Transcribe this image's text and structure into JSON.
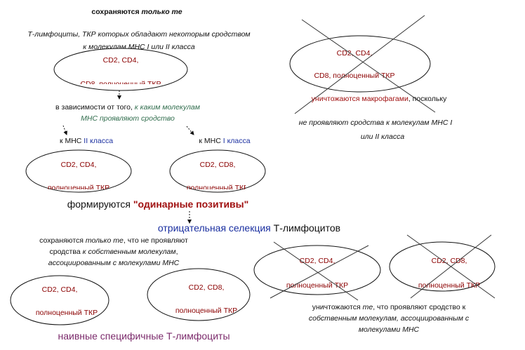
{
  "top_note": [
    "сохраняются ",
    "только те"
  ],
  "top_desc": [
    "Т-лимфоциты, ТКР которых обладают некоторым сродством",
    "к молекулам МНС I или II класса"
  ],
  "thymocyte": [
    "CD2, CD4,",
    "CD8, полноценный ТКР"
  ],
  "rejected": [
    "CD2, CD4,",
    "CD8, полноценный ТКР"
  ],
  "macrophage_note": [
    [
      "уничтожаются макрофагами",
      ", поскольку"
    ],
    "не проявляют сродства к молекулам МНС I",
    "или II класса"
  ],
  "dependence": [
    [
      "в зависимости от того, ",
      "к каким молекулам"
    ],
    "МНС проявляют сродство"
  ],
  "branch_class2": [
    "к МНС ",
    "II класса"
  ],
  "branch_class1": [
    "к МНС ",
    "I класса"
  ],
  "positive_cd4": [
    "CD2, CD4,",
    "полноценный ТКР"
  ],
  "positive_cd8": [
    "CD2, CD8,",
    "полноценный ТКР"
  ],
  "single_positive": [
    "формируются ",
    "\"одинарные позитивы\""
  ],
  "negative_selection": [
    "отрицательная селекция ",
    "Т-лимфоцитов"
  ],
  "survivors_note": [
    [
      "сохраняются ",
      "только те",
      ", что не проявляют"
    ],
    [
      "сродства ",
      "к собственным молекулам",
      ","
    ],
    "ассоциированным с молекулами МНС"
  ],
  "final_cd4": [
    "CD2, CD4,",
    "полноценный ТКР"
  ],
  "final_cd8": [
    "CD2, CD8,",
    "полноценный ТКР"
  ],
  "killed_cd4": [
    "CD2, CD4,",
    "полноценный ТКР"
  ],
  "killed_cd8": [
    "CD2, CD8,",
    "полноценный ТКР"
  ],
  "killed_note": [
    [
      "уничтожаются ",
      "те",
      ", что проявляют сродство к"
    ],
    "собственным молекулам, ассоциированным с",
    "молекулами МНС"
  ],
  "naive": "наивные специфичные Т-лимфоциты"
}
